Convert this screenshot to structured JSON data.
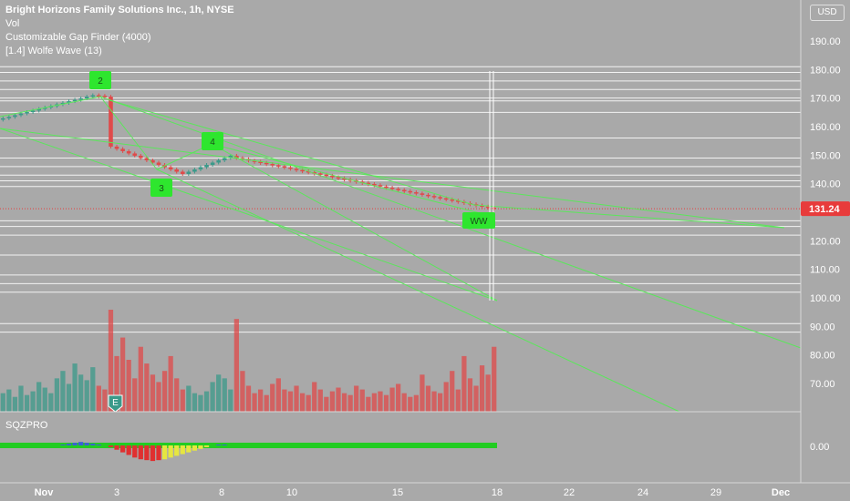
{
  "legend": {
    "title": "Bright Horizons Family Solutions Inc., 1h, NYSE",
    "indicators": [
      "Vol",
      "Customizable Gap Finder (4000)",
      "[1.4] Wolfe Wave (13)"
    ]
  },
  "currency_selector": "USD",
  "last_price": "131.24",
  "sqz_label": "SQZPRO",
  "sqz_axis_value": "0.00",
  "wave_labels": [
    "2",
    "3",
    "4",
    "WW"
  ],
  "earnings_marker": "E",
  "colors": {
    "background": "#a9a9a9",
    "up": "#3b9a8a",
    "down": "#e04a4a",
    "wave_line": "#5be65b",
    "wave_label_bg": "#2ee62e",
    "price_tag": "#e83b3b",
    "gap_line": "#ffffff"
  },
  "chart_data": [
    {
      "type": "candlestick",
      "title": "Bright Horizons Family Solutions Inc., 1h, NYSE",
      "x_ticks": [
        "Nov",
        "3",
        "8",
        "10",
        "15",
        "18",
        "22",
        "24",
        "29",
        "Dec"
      ],
      "y_ticks": [
        70,
        80,
        90,
        100,
        110,
        120,
        130,
        140,
        150,
        160,
        170,
        180,
        190
      ],
      "ylim": [
        65,
        200
      ],
      "gap_levels": [
        181,
        179,
        176,
        173,
        170,
        169,
        165,
        156,
        149,
        146,
        143,
        141,
        139,
        127,
        125,
        122,
        115,
        108,
        105,
        102,
        91,
        88
      ],
      "closes": [
        162.9,
        163.4,
        164.0,
        164.6,
        165.1,
        165.6,
        166.2,
        166.7,
        167.2,
        167.8,
        168.3,
        168.9,
        169.4,
        169.9,
        170.5,
        171.0,
        170.8,
        170.5,
        153.0,
        152.2,
        151.4,
        150.6,
        149.8,
        149.0,
        148.2,
        147.4,
        146.6,
        145.8,
        145.0,
        144.2,
        143.4,
        144.2,
        145.0,
        145.8,
        146.6,
        147.4,
        148.2,
        149.0,
        149.8,
        149.0,
        148.6,
        148.1,
        147.7,
        147.3,
        146.9,
        146.5,
        146.1,
        145.7,
        145.2,
        144.8,
        144.4,
        144.0,
        143.6,
        143.2,
        142.8,
        142.3,
        141.9,
        141.5,
        141.1,
        140.7,
        140.3,
        139.9,
        139.5,
        139.0,
        138.6,
        138.2,
        137.8,
        137.4,
        137.0,
        136.6,
        136.1,
        135.7,
        135.3,
        134.9,
        134.5,
        134.1,
        133.7,
        133.2,
        132.8,
        132.4,
        132.0,
        131.6,
        131.24
      ],
      "last_price": 131.24
    },
    {
      "type": "bar",
      "title": "Vol",
      "values": [
        10,
        12,
        8,
        14,
        9,
        11,
        16,
        13,
        10,
        18,
        22,
        15,
        26,
        20,
        17,
        24,
        14,
        12,
        55,
        30,
        40,
        28,
        18,
        35,
        26,
        20,
        16,
        22,
        30,
        18,
        12,
        14,
        10,
        9,
        11,
        16,
        20,
        18,
        12,
        50,
        22,
        14,
        10,
        12,
        9,
        15,
        18,
        12,
        11,
        14,
        10,
        9,
        16,
        12,
        8,
        11,
        13,
        10,
        9,
        14,
        12,
        8,
        10,
        11,
        9,
        13,
        15,
        10,
        8,
        9,
        20,
        14,
        11,
        10,
        16,
        22,
        12,
        30,
        18,
        14,
        25,
        20,
        35
      ]
    }
  ]
}
